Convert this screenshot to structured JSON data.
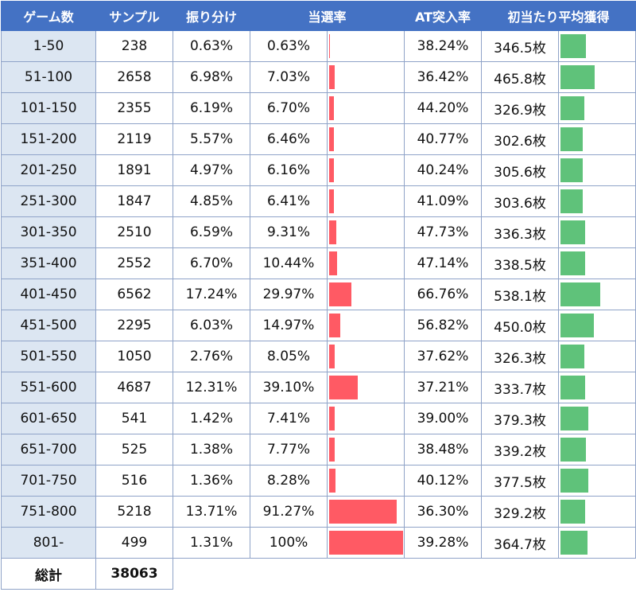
{
  "headers": [
    "ゲーム数",
    "サンプル",
    "振り分け",
    "当選率",
    "AT突入率",
    "初当たり平均獲得"
  ],
  "rows": [
    {
      "range": "1-50",
      "sample": "238",
      "share": "0.63%",
      "win_rate": "0.63%",
      "win_value": 0.63,
      "at_rate": "38.24%",
      "avg": "346.5枚",
      "avg_value": 346.5
    },
    {
      "range": "51-100",
      "sample": "2658",
      "share": "6.98%",
      "win_rate": "7.03%",
      "win_value": 7.03,
      "at_rate": "36.42%",
      "avg": "465.8枚",
      "avg_value": 465.8
    },
    {
      "range": "101-150",
      "sample": "2355",
      "share": "6.19%",
      "win_rate": "6.70%",
      "win_value": 6.7,
      "at_rate": "44.20%",
      "avg": "326.9枚",
      "avg_value": 326.9
    },
    {
      "range": "151-200",
      "sample": "2119",
      "share": "5.57%",
      "win_rate": "6.46%",
      "win_value": 6.46,
      "at_rate": "40.77%",
      "avg": "302.6枚",
      "avg_value": 302.6
    },
    {
      "range": "201-250",
      "sample": "1891",
      "share": "4.97%",
      "win_rate": "6.16%",
      "win_value": 6.16,
      "at_rate": "40.24%",
      "avg": "305.6枚",
      "avg_value": 305.6
    },
    {
      "range": "251-300",
      "sample": "1847",
      "share": "4.85%",
      "win_rate": "6.41%",
      "win_value": 6.41,
      "at_rate": "41.09%",
      "avg": "303.6枚",
      "avg_value": 303.6
    },
    {
      "range": "301-350",
      "sample": "2510",
      "share": "6.59%",
      "win_rate": "9.31%",
      "win_value": 9.31,
      "at_rate": "47.73%",
      "avg": "336.3枚",
      "avg_value": 336.3
    },
    {
      "range": "351-400",
      "sample": "2552",
      "share": "6.70%",
      "win_rate": "10.44%",
      "win_value": 10.44,
      "at_rate": "47.14%",
      "avg": "338.5枚",
      "avg_value": 338.5
    },
    {
      "range": "401-450",
      "sample": "6562",
      "share": "17.24%",
      "win_rate": "29.97%",
      "win_value": 29.97,
      "at_rate": "66.76%",
      "avg": "538.1枚",
      "avg_value": 538.1
    },
    {
      "range": "451-500",
      "sample": "2295",
      "share": "6.03%",
      "win_rate": "14.97%",
      "win_value": 14.97,
      "at_rate": "56.82%",
      "avg": "450.0枚",
      "avg_value": 450.0
    },
    {
      "range": "501-550",
      "sample": "1050",
      "share": "2.76%",
      "win_rate": "8.05%",
      "win_value": 8.05,
      "at_rate": "37.62%",
      "avg": "326.3枚",
      "avg_value": 326.3
    },
    {
      "range": "551-600",
      "sample": "4687",
      "share": "12.31%",
      "win_rate": "39.10%",
      "win_value": 39.1,
      "at_rate": "37.21%",
      "avg": "333.7枚",
      "avg_value": 333.7
    },
    {
      "range": "601-650",
      "sample": "541",
      "share": "1.42%",
      "win_rate": "7.41%",
      "win_value": 7.41,
      "at_rate": "39.00%",
      "avg": "379.3枚",
      "avg_value": 379.3
    },
    {
      "range": "651-700",
      "sample": "525",
      "share": "1.38%",
      "win_rate": "7.77%",
      "win_value": 7.77,
      "at_rate": "38.48%",
      "avg": "339.2枚",
      "avg_value": 339.2
    },
    {
      "range": "701-750",
      "sample": "516",
      "share": "1.36%",
      "win_rate": "8.28%",
      "win_value": 8.28,
      "at_rate": "40.12%",
      "avg": "377.5枚",
      "avg_value": 377.5
    },
    {
      "range": "751-800",
      "sample": "5218",
      "share": "13.71%",
      "win_rate": "91.27%",
      "win_value": 91.27,
      "at_rate": "36.30%",
      "avg": "329.2枚",
      "avg_value": 329.2
    },
    {
      "range": "801-",
      "sample": "499",
      "share": "1.31%",
      "win_rate": "100%",
      "win_value": 100,
      "at_rate": "39.28%",
      "avg": "364.7枚",
      "avg_value": 364.7
    }
  ],
  "total": {
    "label": "総計",
    "sample": "38063"
  },
  "colors": {
    "header": "#4472c4",
    "range_cell": "#dce6f2",
    "win_bar": "#ff5a64",
    "avg_bar": "#5fc27a"
  }
}
